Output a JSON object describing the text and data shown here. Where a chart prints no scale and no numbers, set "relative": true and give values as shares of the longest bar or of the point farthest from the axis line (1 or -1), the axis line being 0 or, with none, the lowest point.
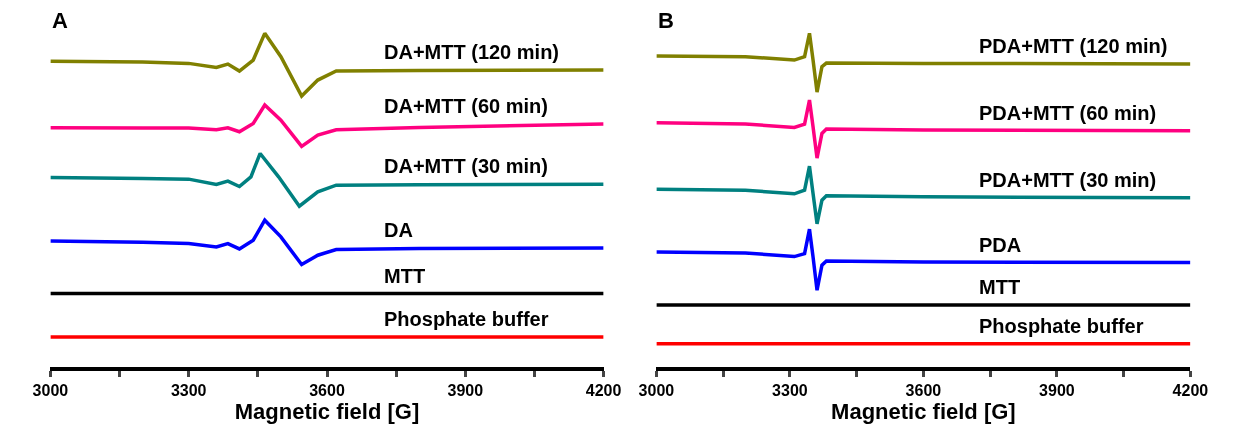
{
  "chart_data": [
    {
      "type": "line",
      "relative": true,
      "xlabel": "Magnetic field [G]",
      "annotations": [
        "A"
      ],
      "xlim": [
        3000,
        4200
      ],
      "xticks": [
        3000,
        {
          "value": 3150,
          "label": null
        },
        3300,
        {
          "value": 3450,
          "label": null
        },
        3600,
        {
          "value": 3750,
          "label": null
        },
        3900,
        {
          "value": 4050,
          "label": null
        },
        4200
      ],
      "tick_labels": "x",
      "marker": "none",
      "line_style": "solid",
      "series": [
        {
          "name": "DA+MTT (120 min)",
          "color": "#808000",
          "x": [
            3000,
            3200,
            3300,
            3360,
            3385,
            3410,
            3440,
            3465,
            3500,
            3545,
            3580,
            3620,
            3800,
            4200
          ],
          "values": [
            0.916,
            0.914,
            0.91,
            0.898,
            0.908,
            0.887,
            0.92,
            1.0,
            0.93,
            0.812,
            0.86,
            0.887,
            0.889,
            0.89
          ]
        },
        {
          "name": "DA+MTT (60 min)",
          "color": "#ff0080",
          "x": [
            3000,
            3200,
            3300,
            3360,
            3385,
            3410,
            3440,
            3465,
            3500,
            3545,
            3580,
            3620,
            3800,
            4200
          ],
          "values": [
            0.717,
            0.716,
            0.716,
            0.711,
            0.717,
            0.705,
            0.73,
            0.785,
            0.74,
            0.661,
            0.695,
            0.711,
            0.718,
            0.728
          ]
        },
        {
          "name": "DA+MTT (30 min)",
          "color": "#008080",
          "x": [
            3000,
            3200,
            3300,
            3360,
            3385,
            3410,
            3435,
            3455,
            3495,
            3540,
            3580,
            3620,
            3800,
            4200
          ],
          "values": [
            0.568,
            0.565,
            0.563,
            0.547,
            0.557,
            0.541,
            0.57,
            0.64,
            0.57,
            0.482,
            0.525,
            0.545,
            0.546,
            0.548
          ]
        },
        {
          "name": "DA",
          "color": "#0000ff",
          "x": [
            3000,
            3200,
            3300,
            3360,
            3385,
            3410,
            3440,
            3465,
            3500,
            3545,
            3580,
            3620,
            3800,
            4200
          ],
          "values": [
            0.378,
            0.374,
            0.37,
            0.36,
            0.37,
            0.354,
            0.38,
            0.44,
            0.39,
            0.307,
            0.335,
            0.352,
            0.355,
            0.357
          ]
        },
        {
          "name": "MTT",
          "color": "#000000",
          "x": [
            3000,
            3600,
            4200
          ],
          "values": [
            0.22,
            0.22,
            0.22
          ]
        },
        {
          "name": "Phosphate buffer",
          "color": "#ff0000",
          "x": [
            3000,
            3600,
            4200
          ],
          "values": [
            0.09,
            0.09,
            0.09
          ]
        }
      ]
    },
    {
      "type": "line",
      "relative": true,
      "xlabel": "Magnetic field [G]",
      "annotations": [
        "B"
      ],
      "xlim": [
        3000,
        4200
      ],
      "xticks": [
        3000,
        {
          "value": 3150,
          "label": null
        },
        3300,
        {
          "value": 3450,
          "label": null
        },
        3600,
        {
          "value": 3750,
          "label": null
        },
        3900,
        {
          "value": 4050,
          "label": null
        },
        4200
      ],
      "tick_labels": "x",
      "marker": "none",
      "line_style": "solid",
      "series": [
        {
          "name": "PDA+MTT (120 min)",
          "color": "#808000",
          "x": [
            3000,
            3200,
            3310,
            3333,
            3344,
            3352,
            3361,
            3372,
            3382,
            3600,
            4200
          ],
          "values": [
            0.932,
            0.93,
            0.92,
            0.93,
            1.0,
            0.92,
            0.824,
            0.9,
            0.911,
            0.91,
            0.908
          ]
        },
        {
          "name": "PDA+MTT (60 min)",
          "color": "#ff0080",
          "x": [
            3000,
            3200,
            3310,
            3333,
            3344,
            3352,
            3361,
            3372,
            3382,
            3600,
            4200
          ],
          "values": [
            0.732,
            0.728,
            0.718,
            0.728,
            0.8,
            0.72,
            0.626,
            0.7,
            0.713,
            0.71,
            0.708
          ]
        },
        {
          "name": "PDA+MTT (30 min)",
          "color": "#008080",
          "x": [
            3000,
            3200,
            3310,
            3333,
            3344,
            3352,
            3361,
            3372,
            3382,
            3600,
            4200
          ],
          "values": [
            0.533,
            0.53,
            0.519,
            0.53,
            0.602,
            0.52,
            0.429,
            0.5,
            0.513,
            0.51,
            0.507
          ]
        },
        {
          "name": "PDA",
          "color": "#0000ff",
          "x": [
            3000,
            3200,
            3310,
            3333,
            3344,
            3352,
            3361,
            3372,
            3382,
            3600,
            4200
          ],
          "values": [
            0.345,
            0.342,
            0.331,
            0.34,
            0.413,
            0.33,
            0.23,
            0.305,
            0.318,
            0.315,
            0.313
          ]
        },
        {
          "name": "MTT",
          "color": "#000000",
          "x": [
            3000,
            3300,
            3600,
            3900,
            4200
          ],
          "values": [
            0.186,
            0.186,
            0.186,
            0.186,
            0.186
          ]
        },
        {
          "name": "Phosphate buffer",
          "color": "#ff0000",
          "x": [
            3000,
            3300,
            3600,
            3900,
            4200
          ],
          "values": [
            0.07,
            0.07,
            0.07,
            0.07,
            0.07
          ]
        }
      ]
    }
  ]
}
